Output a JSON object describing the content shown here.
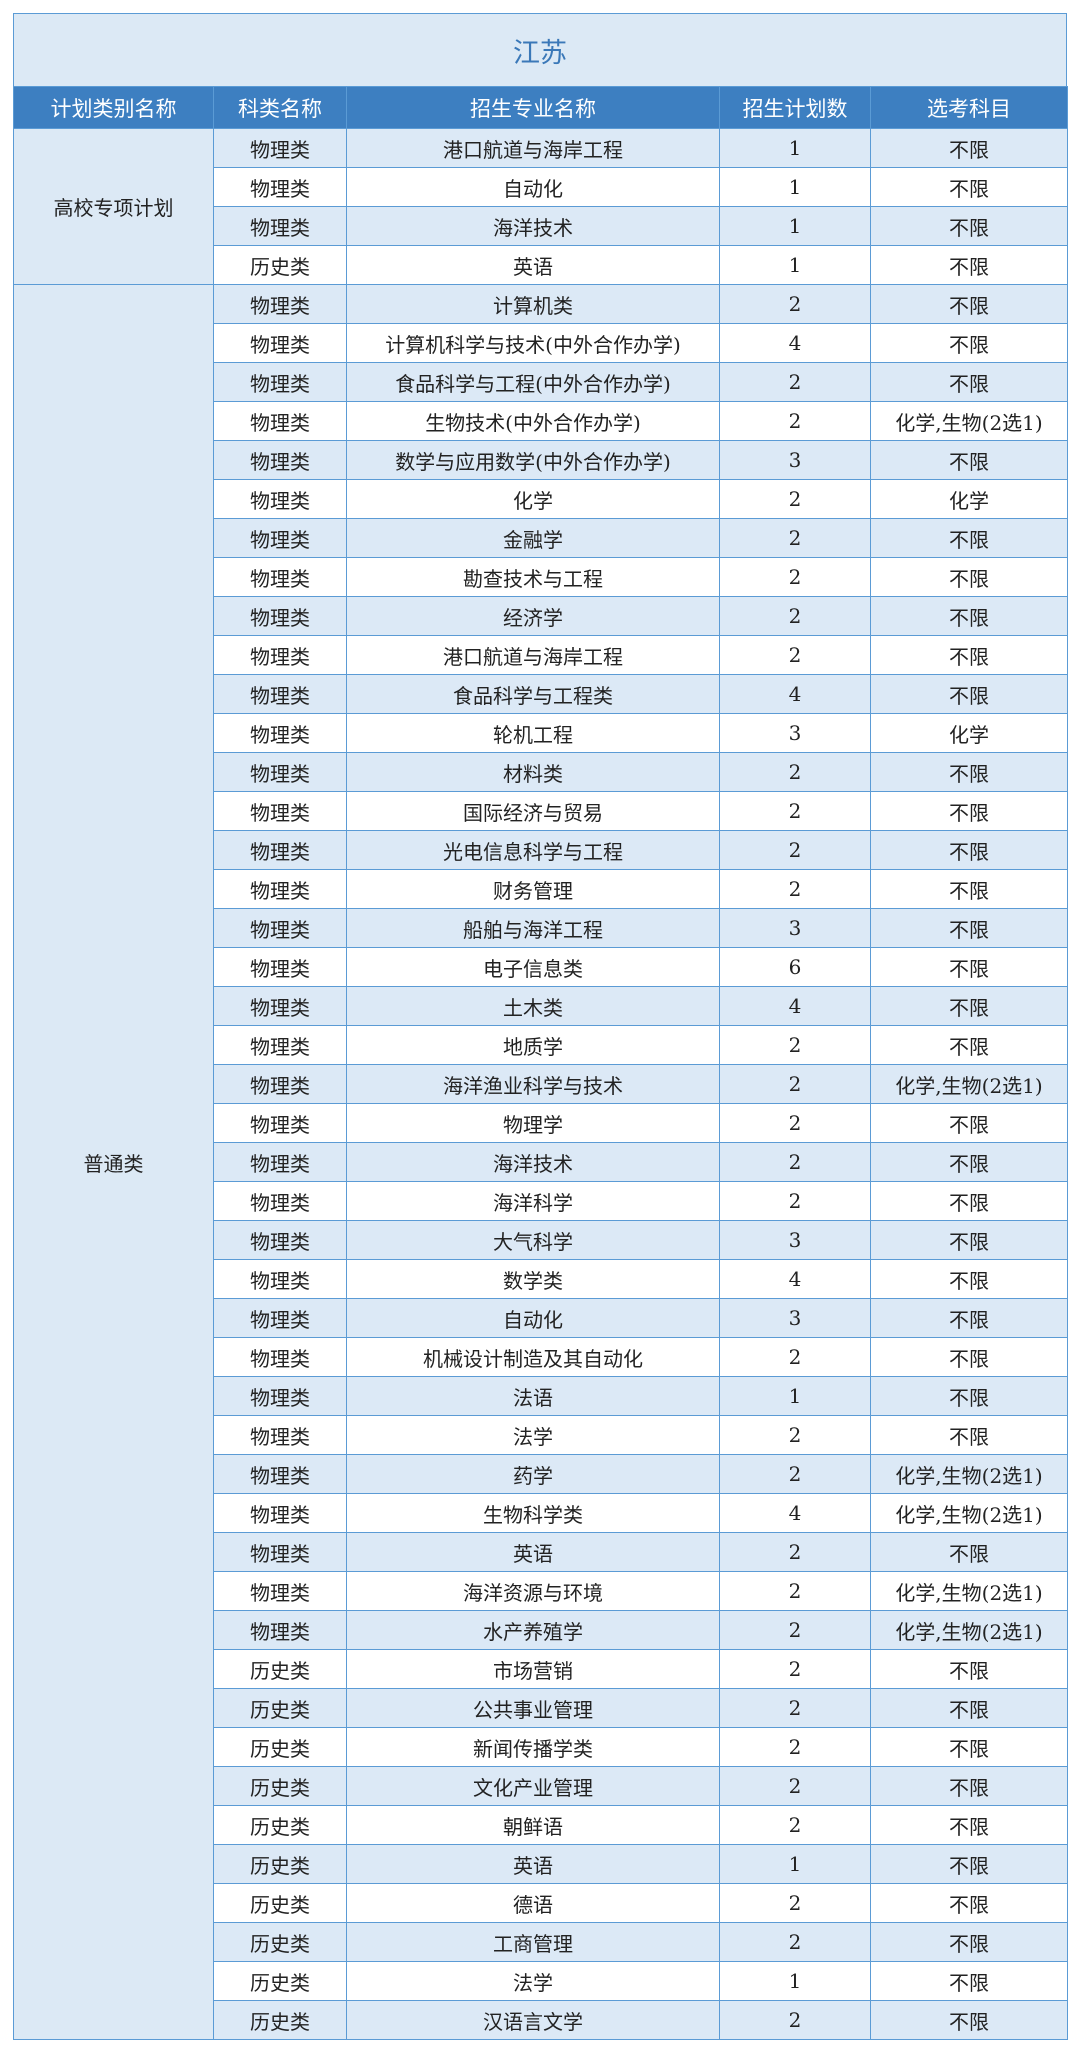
{
  "title": "江苏",
  "table": {
    "headers": [
      "计划类别名称",
      "科类名称",
      "招生专业名称",
      "招生计划数",
      "选考科目"
    ],
    "groups": [
      {
        "name": "高校专项计划",
        "rows": [
          [
            "物理类",
            "港口航道与海岸工程",
            1,
            "不限"
          ],
          [
            "物理类",
            "自动化",
            1,
            "不限"
          ],
          [
            "物理类",
            "海洋技术",
            1,
            "不限"
          ],
          [
            "历史类",
            "英语",
            1,
            "不限"
          ]
        ]
      },
      {
        "name": "普通类",
        "rows": [
          [
            "物理类",
            "计算机类",
            2,
            "不限"
          ],
          [
            "物理类",
            "计算机科学与技术(中外合作办学)",
            4,
            "不限"
          ],
          [
            "物理类",
            "食品科学与工程(中外合作办学)",
            2,
            "不限"
          ],
          [
            "物理类",
            "生物技术(中外合作办学)",
            2,
            "化学,生物(2选1)"
          ],
          [
            "物理类",
            "数学与应用数学(中外合作办学)",
            3,
            "不限"
          ],
          [
            "物理类",
            "化学",
            2,
            "化学"
          ],
          [
            "物理类",
            "金融学",
            2,
            "不限"
          ],
          [
            "物理类",
            "勘查技术与工程",
            2,
            "不限"
          ],
          [
            "物理类",
            "经济学",
            2,
            "不限"
          ],
          [
            "物理类",
            "港口航道与海岸工程",
            2,
            "不限"
          ],
          [
            "物理类",
            "食品科学与工程类",
            4,
            "不限"
          ],
          [
            "物理类",
            "轮机工程",
            3,
            "化学"
          ],
          [
            "物理类",
            "材料类",
            2,
            "不限"
          ],
          [
            "物理类",
            "国际经济与贸易",
            2,
            "不限"
          ],
          [
            "物理类",
            "光电信息科学与工程",
            2,
            "不限"
          ],
          [
            "物理类",
            "财务管理",
            2,
            "不限"
          ],
          [
            "物理类",
            "船舶与海洋工程",
            3,
            "不限"
          ],
          [
            "物理类",
            "电子信息类",
            6,
            "不限"
          ],
          [
            "物理类",
            "土木类",
            4,
            "不限"
          ],
          [
            "物理类",
            "地质学",
            2,
            "不限"
          ],
          [
            "物理类",
            "海洋渔业科学与技术",
            2,
            "化学,生物(2选1)"
          ],
          [
            "物理类",
            "物理学",
            2,
            "不限"
          ],
          [
            "物理类",
            "海洋技术",
            2,
            "不限"
          ],
          [
            "物理类",
            "海洋科学",
            2,
            "不限"
          ],
          [
            "物理类",
            "大气科学",
            3,
            "不限"
          ],
          [
            "物理类",
            "数学类",
            4,
            "不限"
          ],
          [
            "物理类",
            "自动化",
            3,
            "不限"
          ],
          [
            "物理类",
            "机械设计制造及其自动化",
            2,
            "不限"
          ],
          [
            "物理类",
            "法语",
            1,
            "不限"
          ],
          [
            "物理类",
            "法学",
            2,
            "不限"
          ],
          [
            "物理类",
            "药学",
            2,
            "化学,生物(2选1)"
          ],
          [
            "物理类",
            "生物科学类",
            4,
            "化学,生物(2选1)"
          ],
          [
            "物理类",
            "英语",
            2,
            "不限"
          ],
          [
            "物理类",
            "海洋资源与环境",
            2,
            "化学,生物(2选1)"
          ],
          [
            "物理类",
            "水产养殖学",
            2,
            "化学,生物(2选1)"
          ],
          [
            "历史类",
            "市场营销",
            2,
            "不限"
          ],
          [
            "历史类",
            "公共事业管理",
            2,
            "不限"
          ],
          [
            "历史类",
            "新闻传播学类",
            2,
            "不限"
          ],
          [
            "历史类",
            "文化产业管理",
            2,
            "不限"
          ],
          [
            "历史类",
            "朝鲜语",
            2,
            "不限"
          ],
          [
            "历史类",
            "英语",
            1,
            "不限"
          ],
          [
            "历史类",
            "德语",
            2,
            "不限"
          ],
          [
            "历史类",
            "工商管理",
            2,
            "不限"
          ],
          [
            "历史类",
            "法学",
            1,
            "不限"
          ],
          [
            "历史类",
            "汉语言文学",
            2,
            "不限"
          ]
        ]
      }
    ]
  }
}
